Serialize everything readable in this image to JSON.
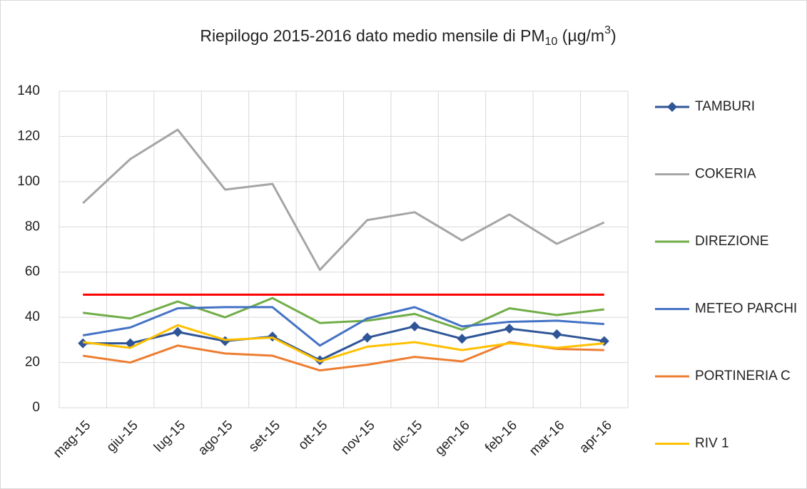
{
  "chart_data": {
    "type": "line",
    "title": [
      "Riepilogo 2015-2016 dato medio mensile di PM",
      "10",
      " (µg/m",
      "3",
      ")"
    ],
    "categories": [
      "mag-15",
      "giu-15",
      "lug-15",
      "ago-15",
      "set-15",
      "ott-15",
      "nov-15",
      "dic-15",
      "gen-16",
      "feb-16",
      "mar-16",
      "apr-16"
    ],
    "series": [
      {
        "name": "TAMBURI",
        "color": "#2f5597",
        "marker": "diamond",
        "values": [
          28.5,
          28.5,
          33.5,
          29.5,
          31.5,
          21,
          31,
          36,
          30.5,
          35,
          32.5,
          29.5
        ]
      },
      {
        "name": "COKERIA",
        "color": "#a5a5a5",
        "values": [
          90.5,
          110,
          123,
          96.5,
          99,
          61,
          83,
          86.5,
          74,
          85.5,
          72.5,
          82
        ]
      },
      {
        "name": "DIREZIONE",
        "color": "#70ad47",
        "values": [
          42,
          39.5,
          47,
          40,
          48.5,
          37.5,
          38.5,
          41.5,
          34.5,
          44,
          41,
          43.5
        ]
      },
      {
        "name": "METEO PARCHI",
        "color": "#4472c4",
        "values": [
          32,
          35.5,
          44,
          44.5,
          44.5,
          27.5,
          39.5,
          44.5,
          36,
          38,
          38.5,
          37
        ]
      },
      {
        "name": "PORTINERIA C",
        "color": "#ed7d31",
        "values": [
          23,
          20,
          27.5,
          24,
          23,
          16.5,
          19,
          22.5,
          20.5,
          29,
          26,
          25.5
        ]
      },
      {
        "name": "RIV 1",
        "color": "#ffc000",
        "values": [
          29,
          26.5,
          36.5,
          30,
          31,
          20.5,
          27,
          29,
          25.5,
          28.5,
          26.5,
          28.5
        ]
      }
    ],
    "reference_line": {
      "value": 50,
      "color": "#ff0000"
    },
    "ylim": [
      0,
      140
    ],
    "yticks": [
      0,
      20,
      40,
      60,
      80,
      100,
      120,
      140
    ],
    "grid": true,
    "legend": "right"
  }
}
